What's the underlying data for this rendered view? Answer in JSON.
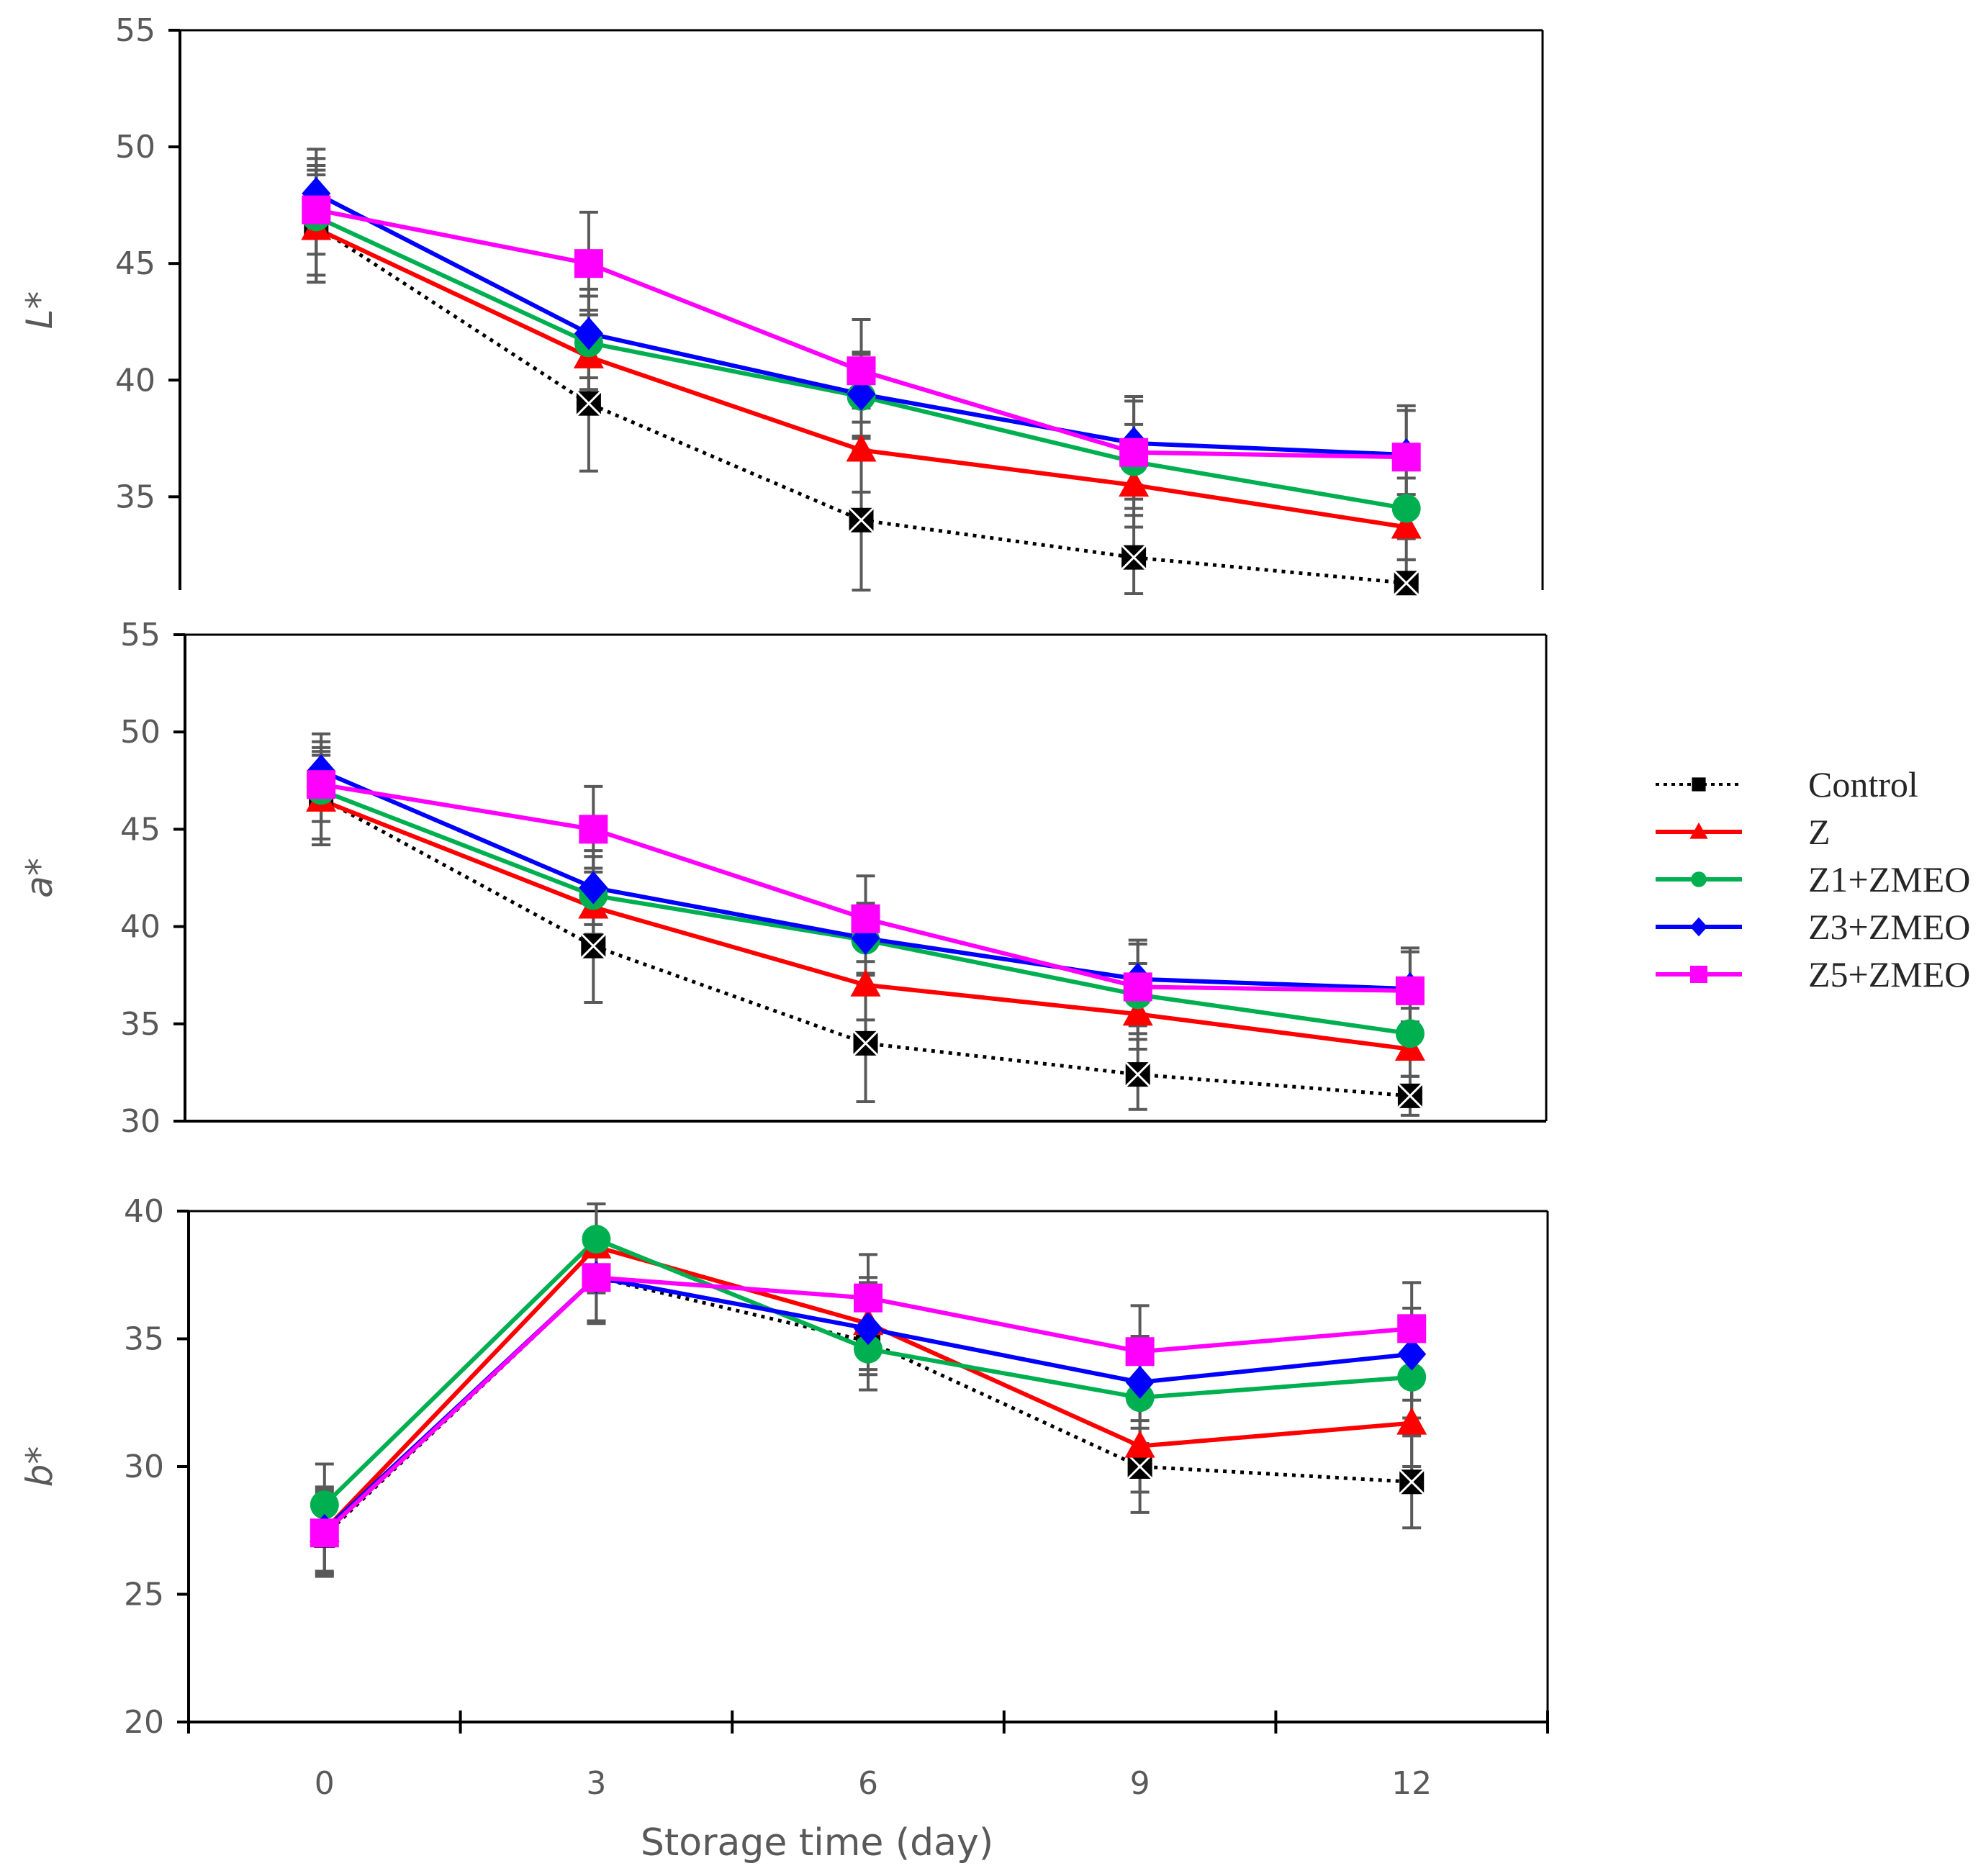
{
  "figure": {
    "xlabel": "Storage time (day)",
    "x_ticks": [
      "0",
      "3",
      "6",
      "9",
      "12"
    ]
  },
  "legend": [
    {
      "name": "Control",
      "color": "#000000",
      "marker": "x-square",
      "dash": "dotted"
    },
    {
      "name": "Z",
      "color": "#ff0000",
      "marker": "triangle",
      "dash": "solid"
    },
    {
      "name": "Z1+ZMEO",
      "color": "#00b050",
      "marker": "circle",
      "dash": "solid"
    },
    {
      "name": "Z3+ZMEO",
      "color": "#0000ff",
      "marker": "diamond",
      "dash": "solid"
    },
    {
      "name": "Z5+ZMEO",
      "color": "#ff00ff",
      "marker": "square",
      "dash": "solid"
    }
  ],
  "chart_data": [
    {
      "type": "line",
      "ylabel": "L*",
      "ylim": [
        31,
        55
      ],
      "yticks": [
        35,
        40,
        45,
        50,
        55
      ],
      "x": [
        0,
        3,
        6,
        9,
        12
      ],
      "series": [
        {
          "name": "Control",
          "values": [
            46.6,
            39.0,
            34.0,
            32.4,
            31.3
          ],
          "err": [
            2.4,
            2.9,
            3.0,
            1.8,
            1.0
          ]
        },
        {
          "name": "Z",
          "values": [
            46.5,
            41.0,
            37.0,
            35.5,
            33.7
          ],
          "err": [
            2.3,
            2.0,
            1.8,
            1.8,
            1.4
          ]
        },
        {
          "name": "Z1+ZMEO",
          "values": [
            47.0,
            41.6,
            39.3,
            36.5,
            34.5
          ],
          "err": [
            2.5,
            2.0,
            1.8,
            1.6,
            1.3
          ]
        },
        {
          "name": "Z3+ZMEO",
          "values": [
            48.0,
            42.0,
            39.4,
            37.3,
            36.8
          ],
          "err": [
            1.9,
            1.9,
            1.8,
            1.8,
            1.9
          ]
        },
        {
          "name": "Z5+ZMEO",
          "values": [
            47.3,
            45.0,
            40.4,
            36.9,
            36.7
          ],
          "err": [
            1.9,
            2.2,
            2.2,
            2.4,
            2.2
          ]
        }
      ]
    },
    {
      "type": "line",
      "ylabel": "a*",
      "ylim": [
        30,
        55
      ],
      "yticks": [
        30,
        35,
        40,
        45,
        50,
        55
      ],
      "x": [
        0,
        3,
        6,
        9,
        12
      ],
      "series": [
        {
          "name": "Control",
          "values": [
            46.6,
            39.0,
            34.0,
            32.4,
            31.3
          ],
          "err": [
            2.4,
            2.9,
            3.0,
            1.8,
            1.0
          ]
        },
        {
          "name": "Z",
          "values": [
            46.5,
            41.0,
            37.0,
            35.5,
            33.7
          ],
          "err": [
            2.3,
            2.0,
            1.8,
            1.8,
            1.4
          ]
        },
        {
          "name": "Z1+ZMEO",
          "values": [
            47.0,
            41.6,
            39.3,
            36.5,
            34.5
          ],
          "err": [
            2.5,
            2.0,
            1.8,
            1.6,
            1.3
          ]
        },
        {
          "name": "Z3+ZMEO",
          "values": [
            48.0,
            42.0,
            39.4,
            37.3,
            36.8
          ],
          "err": [
            1.9,
            1.9,
            1.8,
            1.8,
            1.9
          ]
        },
        {
          "name": "Z5+ZMEO",
          "values": [
            47.3,
            45.0,
            40.4,
            36.9,
            36.7
          ],
          "err": [
            1.9,
            2.2,
            2.2,
            2.4,
            2.2
          ]
        }
      ]
    },
    {
      "type": "line",
      "ylabel": "b*",
      "ylim": [
        20,
        40
      ],
      "yticks": [
        20,
        25,
        30,
        35,
        40
      ],
      "x": [
        0,
        3,
        6,
        9,
        12
      ],
      "series": [
        {
          "name": "Control",
          "values": [
            27.3,
            37.4,
            34.9,
            30.0,
            29.4
          ],
          "err": [
            1.6,
            1.8,
            1.9,
            1.8,
            1.8
          ]
        },
        {
          "name": "Z",
          "values": [
            27.5,
            38.6,
            35.6,
            30.8,
            31.7
          ],
          "err": [
            1.7,
            1.8,
            1.8,
            1.8,
            1.7
          ]
        },
        {
          "name": "Z1+ZMEO",
          "values": [
            28.5,
            38.9,
            34.6,
            32.7,
            33.5
          ],
          "err": [
            1.6,
            1.7,
            1.6,
            1.8,
            1.6
          ]
        },
        {
          "name": "Z3+ZMEO",
          "values": [
            27.5,
            37.4,
            35.4,
            33.3,
            34.4
          ],
          "err": [
            1.6,
            1.7,
            1.8,
            1.8,
            1.8
          ]
        },
        {
          "name": "Z5+ZMEO",
          "values": [
            27.4,
            37.4,
            36.6,
            34.5,
            35.4
          ],
          "err": [
            1.6,
            1.7,
            1.7,
            1.8,
            1.8
          ]
        }
      ]
    }
  ]
}
